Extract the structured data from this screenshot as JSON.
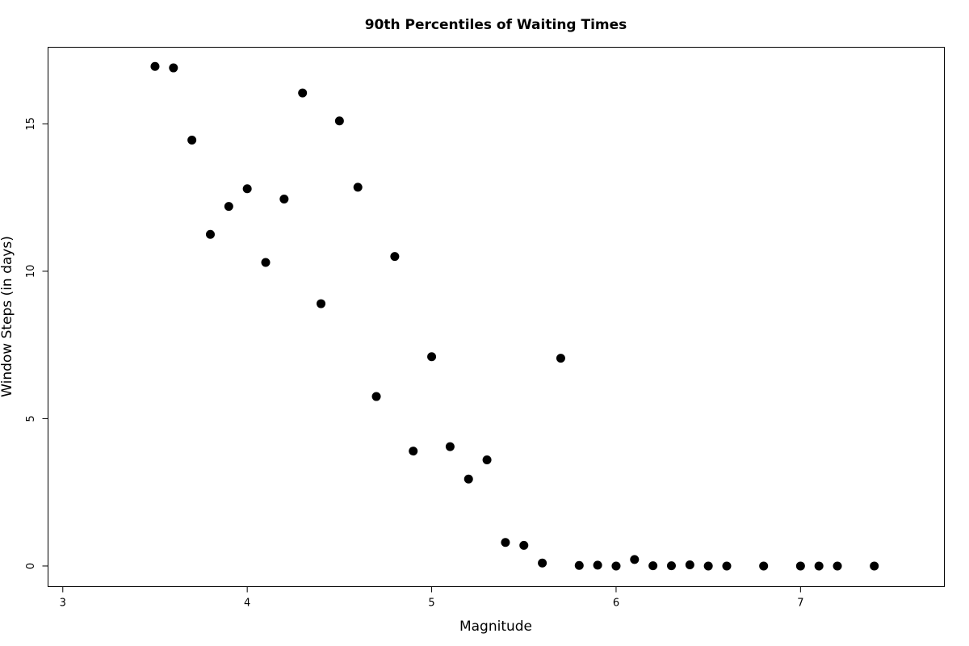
{
  "chart_data": {
    "type": "scatter",
    "title": "90th Percentiles of Waiting Times",
    "xlabel": "Magnitude",
    "ylabel": "Window Steps (in days)",
    "xlim": [
      2.92,
      7.78
    ],
    "ylim": [
      -0.7,
      17.6
    ],
    "xticks": [
      3,
      4,
      5,
      6,
      7
    ],
    "yticks": [
      0,
      5,
      10,
      15
    ],
    "grid": false,
    "point_color": "#000000",
    "points": [
      {
        "x": 3.5,
        "y": 16.95
      },
      {
        "x": 3.6,
        "y": 16.9
      },
      {
        "x": 3.7,
        "y": 14.45
      },
      {
        "x": 3.8,
        "y": 11.25
      },
      {
        "x": 3.9,
        "y": 12.2
      },
      {
        "x": 4.0,
        "y": 12.8
      },
      {
        "x": 4.1,
        "y": 10.3
      },
      {
        "x": 4.2,
        "y": 12.45
      },
      {
        "x": 4.3,
        "y": 16.05
      },
      {
        "x": 4.4,
        "y": 8.9
      },
      {
        "x": 4.5,
        "y": 15.1
      },
      {
        "x": 4.6,
        "y": 12.85
      },
      {
        "x": 4.7,
        "y": 5.75
      },
      {
        "x": 4.8,
        "y": 10.5
      },
      {
        "x": 4.9,
        "y": 3.9
      },
      {
        "x": 5.0,
        "y": 7.1
      },
      {
        "x": 5.1,
        "y": 4.05
      },
      {
        "x": 5.2,
        "y": 2.95
      },
      {
        "x": 5.3,
        "y": 3.6
      },
      {
        "x": 5.4,
        "y": 0.8
      },
      {
        "x": 5.5,
        "y": 0.7
      },
      {
        "x": 5.6,
        "y": 0.1
      },
      {
        "x": 5.7,
        "y": 7.05
      },
      {
        "x": 5.8,
        "y": 0.02
      },
      {
        "x": 5.9,
        "y": 0.03
      },
      {
        "x": 6.0,
        "y": 0.0
      },
      {
        "x": 6.1,
        "y": 0.22
      },
      {
        "x": 6.2,
        "y": 0.01
      },
      {
        "x": 6.3,
        "y": 0.01
      },
      {
        "x": 6.4,
        "y": 0.04
      },
      {
        "x": 6.5,
        "y": 0.0
      },
      {
        "x": 6.6,
        "y": 0.0
      },
      {
        "x": 6.8,
        "y": 0.0
      },
      {
        "x": 7.0,
        "y": 0.0
      },
      {
        "x": 7.1,
        "y": 0.0
      },
      {
        "x": 7.2,
        "y": 0.0
      },
      {
        "x": 7.4,
        "y": 0.0
      }
    ]
  }
}
